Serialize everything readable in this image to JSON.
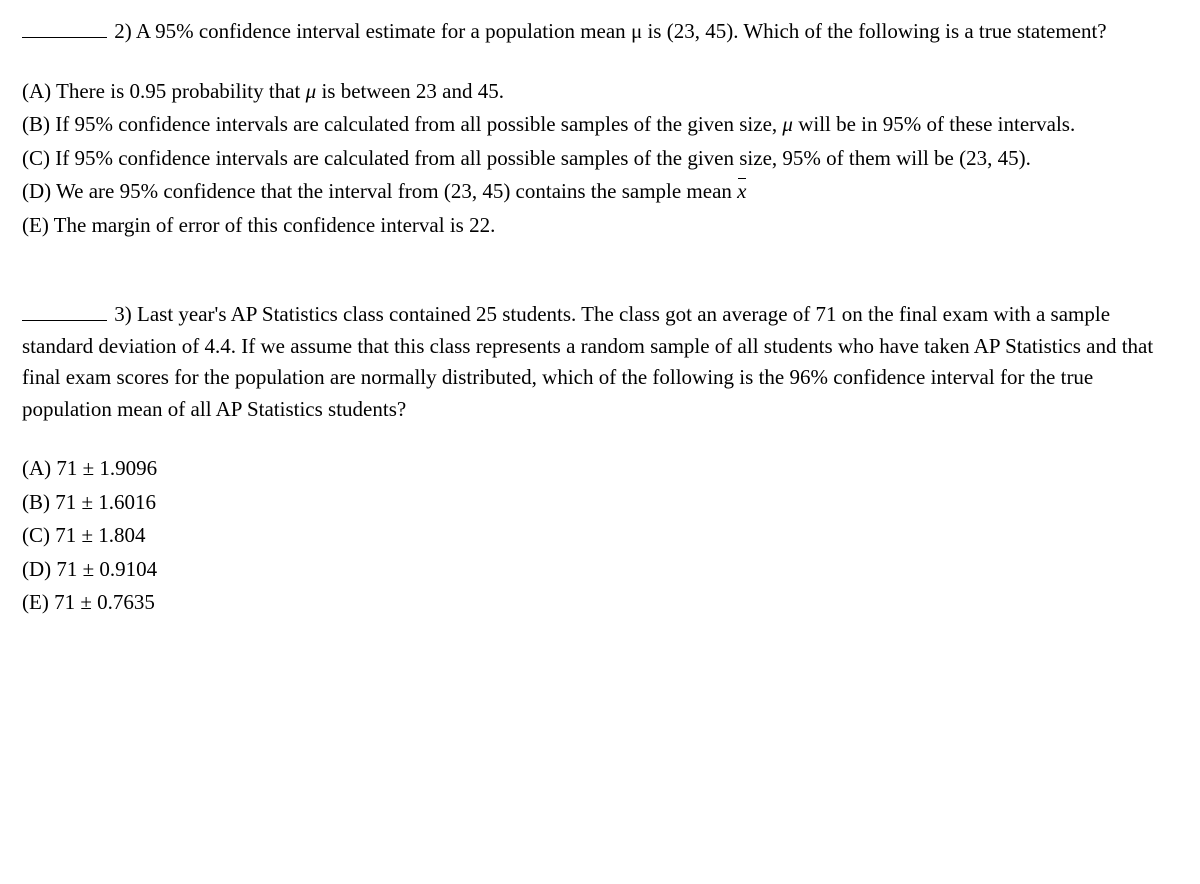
{
  "q2": {
    "number": "2)",
    "stem_1": "A 95% confidence interval estimate for a population mean ",
    "mu": "μ",
    "stem_2": " is (23, 45). Which of the following is a true statement?",
    "choices": {
      "A_pre": "(A) There is 0.95 probability that ",
      "A_mu": "μ",
      "A_post": " is between 23 and 45.",
      "B_pre": "(B) If 95% confidence intervals are calculated from all possible samples of the given size, ",
      "B_mu": "μ",
      "B_post": " will be in 95% of these intervals.",
      "C": "(C) If 95% confidence intervals are calculated from all possible samples of the given size, 95% of them will be (23, 45).",
      "D_pre": "(D) We are 95% confidence that the interval from (23, 45) contains the sample mean ",
      "D_xbar": "x",
      "E": "(E) The margin of error of this confidence interval is 22."
    }
  },
  "q3": {
    "number": "3)",
    "stem": "Last year's AP Statistics class contained 25 students. The class got an average of 71 on the final exam with a sample standard deviation of 4.4. If we assume that this class represents a random sample of all students who have taken AP Statistics and that final exam scores for the population are normally distributed, which of the following is the 96% confidence interval for the true population mean of all AP Statistics students?",
    "choices": {
      "A": "(A) 71 ± 1.9096",
      "B": "(B) 71 ± 1.6016",
      "C": "(C) 71 ± 1.804",
      "D": "(D) 71 ± 0.9104",
      "E": "(E) 71 ± 0.7635"
    }
  }
}
